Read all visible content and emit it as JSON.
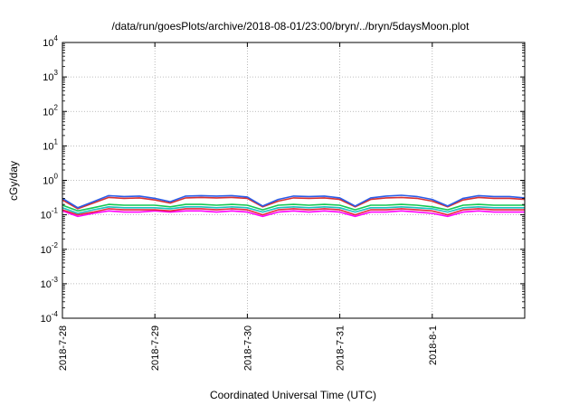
{
  "chart_data": {
    "type": "line",
    "title": "/data/run/goesPlots/archive/2018-08-01/23:00/bryn/../bryn/5daysMoon.plot",
    "xlabel": "Coordinated Universal Time (UTC)",
    "ylabel": "cGy/day",
    "yscale": "log",
    "ylim": [
      0.0001,
      10000
    ],
    "xlim": [
      "2018-07-28T00:00",
      "2018-08-02T00:00"
    ],
    "grid": true,
    "x_ticks": [
      "2018-7-28",
      "2018-7-29",
      "2018-7-30",
      "2018-7-31",
      "2018-8-1"
    ],
    "y_ticks": [
      {
        "base": "10",
        "exp": "-4",
        "value": 0.0001
      },
      {
        "base": "10",
        "exp": "-3",
        "value": 0.001
      },
      {
        "base": "10",
        "exp": "-2",
        "value": 0.01
      },
      {
        "base": "10",
        "exp": "-1",
        "value": 0.1
      },
      {
        "base": "10",
        "exp": "0",
        "value": 1
      },
      {
        "base": "10",
        "exp": "1",
        "value": 10
      },
      {
        "base": "10",
        "exp": "2",
        "value": 100
      },
      {
        "base": "10",
        "exp": "3",
        "value": 1000
      },
      {
        "base": "10",
        "exp": "4",
        "value": 10000
      }
    ],
    "series_colors": [
      "#ff00ff",
      "#e8283c",
      "#18c3c0",
      "#14c850",
      "#d83030",
      "#2a5ce8"
    ],
    "x": [
      "2018-07-28 00:00",
      "2018-07-28 04:00",
      "2018-07-28 08:00",
      "2018-07-28 12:00",
      "2018-07-28 16:00",
      "2018-07-28 20:00",
      "2018-07-29 00:00",
      "2018-07-29 04:00",
      "2018-07-29 08:00",
      "2018-07-29 12:00",
      "2018-07-29 16:00",
      "2018-07-29 20:00",
      "2018-07-30 00:00",
      "2018-07-30 04:00",
      "2018-07-30 08:00",
      "2018-07-30 12:00",
      "2018-07-30 16:00",
      "2018-07-30 20:00",
      "2018-07-31 00:00",
      "2018-07-31 04:00",
      "2018-07-31 08:00",
      "2018-07-31 12:00",
      "2018-07-31 16:00",
      "2018-07-31 20:00",
      "2018-08-01 00:00",
      "2018-08-01 04:00",
      "2018-08-01 08:00",
      "2018-08-01 12:00",
      "2018-08-01 16:00",
      "2018-08-01 20:00",
      "2018-08-02 00:00"
    ],
    "series": [
      {
        "values": [
          0.13,
          0.09,
          0.11,
          0.13,
          0.12,
          0.12,
          0.13,
          0.12,
          0.13,
          0.13,
          0.12,
          0.13,
          0.12,
          0.09,
          0.12,
          0.13,
          0.12,
          0.13,
          0.12,
          0.09,
          0.12,
          0.12,
          0.13,
          0.12,
          0.11,
          0.09,
          0.12,
          0.13,
          0.12,
          0.12,
          0.12
        ]
      },
      {
        "values": [
          0.14,
          0.1,
          0.12,
          0.15,
          0.14,
          0.14,
          0.14,
          0.13,
          0.15,
          0.15,
          0.14,
          0.15,
          0.14,
          0.1,
          0.14,
          0.15,
          0.14,
          0.15,
          0.14,
          0.1,
          0.14,
          0.14,
          0.15,
          0.14,
          0.13,
          0.1,
          0.14,
          0.15,
          0.14,
          0.14,
          0.14
        ]
      },
      {
        "values": [
          0.16,
          0.11,
          0.14,
          0.17,
          0.16,
          0.16,
          0.16,
          0.15,
          0.17,
          0.17,
          0.16,
          0.17,
          0.16,
          0.12,
          0.16,
          0.17,
          0.16,
          0.17,
          0.16,
          0.12,
          0.16,
          0.16,
          0.17,
          0.16,
          0.15,
          0.12,
          0.16,
          0.17,
          0.16,
          0.16,
          0.16
        ]
      },
      {
        "values": [
          0.19,
          0.13,
          0.16,
          0.2,
          0.19,
          0.19,
          0.19,
          0.17,
          0.2,
          0.2,
          0.19,
          0.2,
          0.19,
          0.14,
          0.19,
          0.2,
          0.19,
          0.2,
          0.19,
          0.14,
          0.19,
          0.19,
          0.2,
          0.19,
          0.17,
          0.14,
          0.19,
          0.2,
          0.19,
          0.19,
          0.19
        ]
      },
      {
        "values": [
          0.27,
          0.15,
          0.22,
          0.32,
          0.3,
          0.31,
          0.27,
          0.22,
          0.31,
          0.32,
          0.31,
          0.32,
          0.3,
          0.17,
          0.25,
          0.31,
          0.3,
          0.31,
          0.28,
          0.17,
          0.28,
          0.31,
          0.32,
          0.3,
          0.25,
          0.17,
          0.27,
          0.32,
          0.3,
          0.3,
          0.28
        ]
      },
      {
        "values": [
          0.3,
          0.16,
          0.24,
          0.36,
          0.34,
          0.35,
          0.3,
          0.24,
          0.35,
          0.36,
          0.35,
          0.36,
          0.33,
          0.18,
          0.28,
          0.35,
          0.34,
          0.35,
          0.31,
          0.18,
          0.31,
          0.35,
          0.37,
          0.34,
          0.28,
          0.18,
          0.3,
          0.36,
          0.34,
          0.34,
          0.31
        ]
      }
    ]
  }
}
